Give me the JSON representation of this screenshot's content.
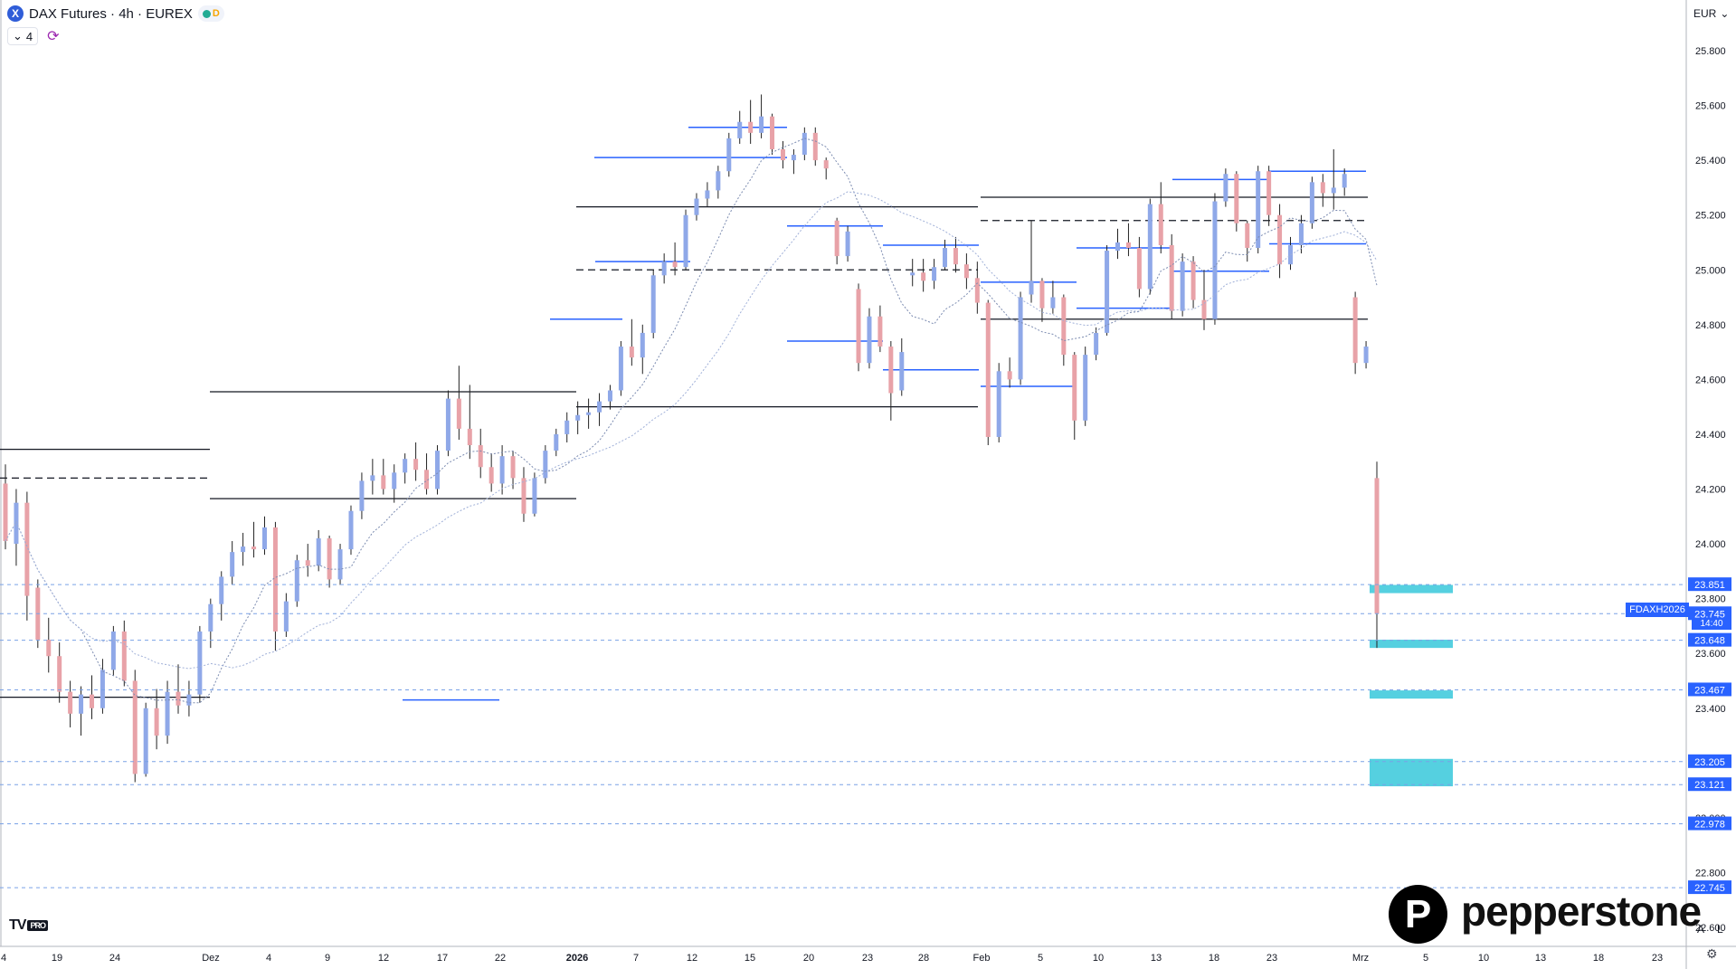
{
  "header": {
    "symbol_title": "DAX Futures · 4h · EUREX",
    "logo_letter": "X",
    "status_badge": "D",
    "indicator_count": "4",
    "currency": "EUR"
  },
  "chart_data": {
    "type": "candlestick",
    "symbol": "FDAXH2026",
    "x_tick_labels": [
      "4",
      "19",
      "24",
      "Dez",
      "4",
      "9",
      "12",
      "17",
      "22",
      "2026",
      "7",
      "12",
      "15",
      "20",
      "23",
      "28",
      "Feb",
      "5",
      "10",
      "13",
      "18",
      "23",
      "Mrz",
      "5",
      "10",
      "13",
      "18",
      "23"
    ],
    "y_tick_labels": [
      "25.800",
      "25.600",
      "25.400",
      "25.200",
      "25.000",
      "24.800",
      "24.600",
      "24.400",
      "24.200",
      "24.000",
      "23.800",
      "23.600",
      "23.400",
      "23.000",
      "22.800",
      "22.600"
    ],
    "ylim": [
      22550,
      25900
    ],
    "series": [
      {
        "name": "",
        "values": [
          [
            24220,
            24290,
            23980,
            24010
          ],
          [
            24000,
            24200,
            23920,
            24150
          ],
          [
            24150,
            24190,
            23720,
            23810
          ],
          [
            23840,
            23870,
            23620,
            23650
          ],
          [
            23650,
            23730,
            23530,
            23590
          ],
          [
            23590,
            23640,
            23420,
            23460
          ],
          [
            23460,
            23500,
            23330,
            23380
          ],
          [
            23380,
            23480,
            23300,
            23450
          ],
          [
            23450,
            23520,
            23360,
            23400
          ],
          [
            23400,
            23580,
            23380,
            23540
          ],
          [
            23540,
            23700,
            23520,
            23680
          ],
          [
            23680,
            23720,
            23480,
            23500
          ],
          [
            23500,
            23540,
            23130,
            23160
          ],
          [
            23160,
            23420,
            23150,
            23400
          ],
          [
            23400,
            23470,
            23250,
            23300
          ],
          [
            23300,
            23500,
            23270,
            23460
          ],
          [
            23460,
            23560,
            23380,
            23410
          ],
          [
            23410,
            23500,
            23370,
            23450
          ],
          [
            23450,
            23700,
            23420,
            23680
          ],
          [
            23680,
            23800,
            23620,
            23780
          ],
          [
            23780,
            23900,
            23720,
            23880
          ],
          [
            23880,
            24010,
            23850,
            23970
          ],
          [
            23970,
            24040,
            23920,
            23990
          ],
          [
            23990,
            24080,
            23950,
            23980
          ],
          [
            23980,
            24100,
            23960,
            24060
          ],
          [
            24060,
            24080,
            23610,
            23680
          ],
          [
            23680,
            23820,
            23660,
            23790
          ],
          [
            23790,
            23960,
            23770,
            23940
          ],
          [
            23940,
            24000,
            23880,
            23920
          ],
          [
            23920,
            24050,
            23900,
            24020
          ],
          [
            24020,
            24030,
            23840,
            23870
          ],
          [
            23870,
            24000,
            23850,
            23980
          ],
          [
            23980,
            24140,
            23960,
            24120
          ],
          [
            24120,
            24260,
            24090,
            24230
          ],
          [
            24230,
            24310,
            24180,
            24250
          ],
          [
            24250,
            24310,
            24180,
            24200
          ],
          [
            24200,
            24290,
            24150,
            24260
          ],
          [
            24260,
            24330,
            24220,
            24310
          ],
          [
            24310,
            24370,
            24230,
            24270
          ],
          [
            24270,
            24330,
            24180,
            24200
          ],
          [
            24200,
            24360,
            24180,
            24340
          ],
          [
            24340,
            24560,
            24320,
            24530
          ],
          [
            24530,
            24650,
            24380,
            24420
          ],
          [
            24420,
            24580,
            24310,
            24360
          ],
          [
            24360,
            24420,
            24240,
            24280
          ],
          [
            24280,
            24330,
            24190,
            24220
          ],
          [
            24220,
            24360,
            24180,
            24320
          ],
          [
            24320,
            24340,
            24200,
            24240
          ],
          [
            24240,
            24280,
            24080,
            24110
          ],
          [
            24110,
            24260,
            24100,
            24240
          ],
          [
            24240,
            24360,
            24220,
            24340
          ],
          [
            24340,
            24420,
            24320,
            24400
          ],
          [
            24400,
            24480,
            24370,
            24450
          ],
          [
            24450,
            24520,
            24400,
            24470
          ],
          [
            24470,
            24530,
            24420,
            24480
          ],
          [
            24480,
            24550,
            24430,
            24520
          ],
          [
            24520,
            24580,
            24490,
            24560
          ],
          [
            24560,
            24740,
            24540,
            24720
          ],
          [
            24720,
            24820,
            24650,
            24680
          ],
          [
            24680,
            24800,
            24620,
            24770
          ],
          [
            24770,
            25000,
            24750,
            24980
          ],
          [
            24980,
            25060,
            24950,
            25030
          ],
          [
            25030,
            25100,
            24980,
            25010
          ],
          [
            25010,
            25220,
            25000,
            25200
          ],
          [
            25200,
            25280,
            25180,
            25260
          ],
          [
            25260,
            25320,
            25230,
            25290
          ],
          [
            25290,
            25380,
            25260,
            25360
          ],
          [
            25360,
            25500,
            25340,
            25480
          ],
          [
            25480,
            25580,
            25460,
            25540
          ],
          [
            25540,
            25620,
            25460,
            25500
          ],
          [
            25500,
            25640,
            25480,
            25560
          ],
          [
            25560,
            25570,
            25420,
            25440
          ],
          [
            25440,
            25470,
            25370,
            25400
          ],
          [
            25400,
            25440,
            25350,
            25420
          ],
          [
            25420,
            25520,
            25400,
            25500
          ],
          [
            25500,
            25520,
            25380,
            25400
          ],
          [
            25400,
            25410,
            25330,
            25370
          ],
          [
            25180,
            25190,
            25020,
            25050
          ],
          [
            25050,
            25160,
            25030,
            25140
          ],
          [
            24930,
            24950,
            24630,
            24660
          ],
          [
            24660,
            24860,
            24640,
            24830
          ],
          [
            24830,
            24870,
            24700,
            24720
          ],
          [
            24720,
            24740,
            24450,
            24550
          ],
          [
            24560,
            24750,
            24540,
            24700
          ],
          [
            24980,
            25040,
            24940,
            24990
          ],
          [
            24990,
            25040,
            24920,
            24960
          ],
          [
            24960,
            25040,
            24930,
            25010
          ],
          [
            25010,
            25110,
            25000,
            25080
          ],
          [
            25080,
            25120,
            24990,
            25020
          ],
          [
            25020,
            25060,
            24930,
            24970
          ],
          [
            24970,
            25030,
            24840,
            24880
          ],
          [
            24880,
            24890,
            24360,
            24390
          ],
          [
            24390,
            24660,
            24370,
            24630
          ],
          [
            24630,
            24680,
            24570,
            24600
          ],
          [
            24600,
            24920,
            24580,
            24900
          ],
          [
            24910,
            25180,
            24880,
            24960
          ],
          [
            24960,
            24970,
            24810,
            24860
          ],
          [
            24860,
            24960,
            24840,
            24900
          ],
          [
            24900,
            24910,
            24650,
            24690
          ],
          [
            24690,
            24700,
            24380,
            24450
          ],
          [
            24450,
            24720,
            24430,
            24690
          ],
          [
            24690,
            24790,
            24670,
            24770
          ],
          [
            24770,
            25090,
            24760,
            25070
          ],
          [
            25070,
            25150,
            25040,
            25100
          ],
          [
            25100,
            25170,
            25050,
            25080
          ],
          [
            25080,
            25120,
            24900,
            24930
          ],
          [
            24930,
            25260,
            24910,
            25240
          ],
          [
            25240,
            25320,
            25060,
            25090
          ],
          [
            25090,
            25130,
            24820,
            24850
          ],
          [
            24850,
            25060,
            24830,
            25030
          ],
          [
            25030,
            25050,
            24860,
            24890
          ],
          [
            24890,
            25000,
            24780,
            24820
          ],
          [
            24820,
            25280,
            24800,
            25250
          ],
          [
            25250,
            25370,
            25230,
            25350
          ],
          [
            25350,
            25360,
            25140,
            25170
          ],
          [
            25170,
            25180,
            25030,
            25080
          ],
          [
            25080,
            25380,
            25060,
            25360
          ],
          [
            25360,
            25380,
            25160,
            25200
          ],
          [
            25200,
            25240,
            24970,
            25020
          ],
          [
            25020,
            25120,
            25000,
            25090
          ],
          [
            25090,
            25200,
            25060,
            25170
          ],
          [
            25170,
            25340,
            25150,
            25320
          ],
          [
            25320,
            25350,
            25230,
            25280
          ],
          [
            25280,
            25440,
            25220,
            25300
          ],
          [
            25300,
            25370,
            25270,
            25350
          ],
          [
            24900,
            24920,
            24620,
            24660
          ],
          [
            24660,
            24740,
            24640,
            24720
          ],
          [
            24240,
            24300,
            23620,
            23745
          ]
        ]
      }
    ],
    "price_markers": [
      {
        "label": "23.851",
        "value": 23851
      },
      {
        "label": "23.745",
        "value": 23745
      },
      {
        "label": "23.648",
        "value": 23648
      },
      {
        "label": "23.467",
        "value": 23467
      },
      {
        "label": "23.205",
        "value": 23205
      },
      {
        "label": "23.121",
        "value": 23121
      },
      {
        "label": "22.978",
        "value": 22978
      },
      {
        "label": "22.745",
        "value": 22745
      }
    ],
    "horizontal_levels": [
      {
        "value": 24345,
        "style": "solid"
      },
      {
        "value": 24240,
        "style": "dashed"
      },
      {
        "value": 24165,
        "style": "solid"
      },
      {
        "value": 24555,
        "style": "solid"
      },
      {
        "value": 24500,
        "style": "solid"
      },
      {
        "value": 25230,
        "style": "solid"
      },
      {
        "value": 25000,
        "style": "dashed"
      },
      {
        "value": 25265,
        "style": "solid"
      },
      {
        "value": 25180,
        "style": "dashed"
      },
      {
        "value": 24820,
        "style": "solid"
      },
      {
        "value": 23440,
        "style": "solid"
      }
    ],
    "zones": [
      {
        "from": 23820,
        "to": 23850
      },
      {
        "from": 23620,
        "to": 23650
      },
      {
        "from": 23435,
        "to": 23465
      },
      {
        "from": 23115,
        "to": 23215
      }
    ],
    "current_price_label": "FDAXH2026",
    "countdown": "14:40",
    "colors": {
      "up": "#8fa8e8",
      "down": "#e8a2a8",
      "level_blue": "#2962ff",
      "zone": "#55d0e0",
      "marker_box": "#2962ff"
    },
    "grid": false
  },
  "branding": {
    "tv_logo": "TV",
    "tv_pro": "PRO",
    "broker_mark": "P",
    "broker_name": "pepperstone",
    "axis_mode_a": "A",
    "axis_mode_l": "L"
  }
}
